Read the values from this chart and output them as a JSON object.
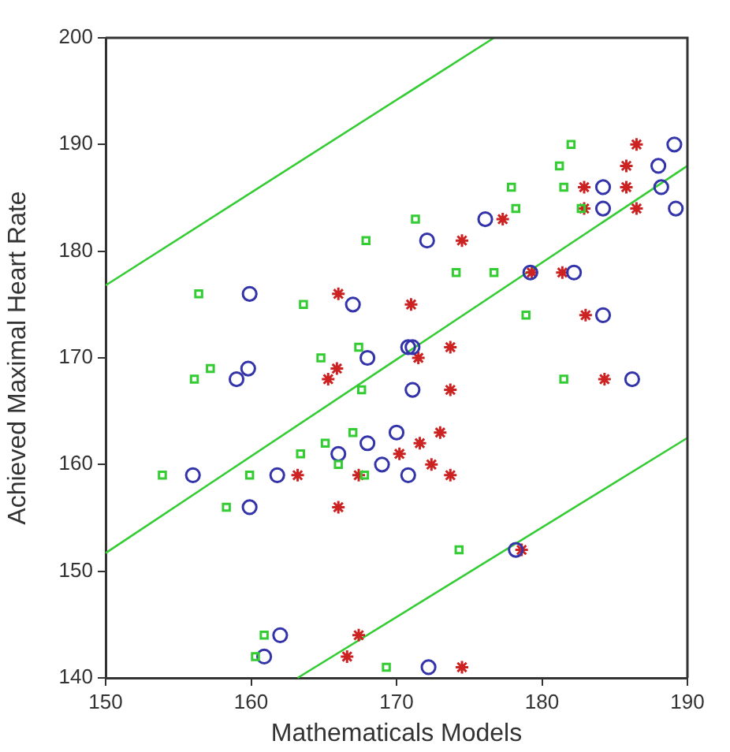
{
  "chart_data": {
    "type": "scatter",
    "xlabel": "Mathematicals Models",
    "ylabel": "Achieved Maximal Heart Rate",
    "xlim": [
      150,
      190
    ],
    "ylim": [
      140,
      200
    ],
    "xticks": [
      150,
      160,
      170,
      180,
      190
    ],
    "yticks": [
      140,
      150,
      160,
      170,
      180,
      190,
      200
    ],
    "grid": false,
    "legend": false,
    "series": [
      {
        "marker": "square",
        "color": "#33cc33",
        "x": [
          182,
          181.2,
          177.9,
          181.5,
          178.2,
          182.7,
          171.3,
          174.1,
          176.7,
          178.9,
          181.5,
          167.9,
          156.4,
          163.6,
          164.8,
          167.4,
          157.2,
          156.1,
          167.6,
          167,
          165.1,
          163.4,
          166,
          167.8,
          153.9,
          159.9,
          158.3,
          160.9,
          160.3,
          169.3,
          174.3
        ],
        "values": [
          190,
          188,
          186,
          186,
          184,
          184,
          183,
          178,
          178,
          174,
          168,
          181,
          176,
          175,
          170,
          171,
          169,
          168,
          167,
          163,
          162,
          161,
          160,
          159,
          159,
          159,
          156,
          144,
          142,
          141,
          152
        ]
      },
      {
        "marker": "circle",
        "color": "#3333aa",
        "x": [
          189.1,
          188,
          184.2,
          188.2,
          184.2,
          189.2,
          176.1,
          172.1,
          179.2,
          182.2,
          184.2,
          171.1,
          159.9,
          167,
          168,
          170.8,
          159.8,
          159,
          168,
          170,
          166,
          169,
          170.8,
          156,
          161.8,
          159.9,
          162,
          160.9,
          171.1,
          186.2,
          178.2,
          172.2
        ],
        "values": [
          190,
          188,
          186,
          186,
          184,
          184,
          183,
          181,
          178,
          178,
          174,
          171,
          176,
          175,
          170,
          171,
          169,
          168,
          162,
          163,
          161,
          160,
          159,
          159,
          159,
          156,
          144,
          142,
          167,
          168,
          152,
          141
        ]
      },
      {
        "marker": "cross",
        "color": "#cc2222",
        "x": [
          186.5,
          185.8,
          182.9,
          185.8,
          182.9,
          186.5,
          177.3,
          174.5,
          179.3,
          181.4,
          171,
          183,
          173.7,
          171.5,
          166,
          165.9,
          165.3,
          170.2,
          163.2,
          167.4,
          166,
          167.4,
          166.6,
          184.3,
          173.7,
          173,
          171.6,
          172.4,
          173.7,
          178.6,
          174.5
        ],
        "values": [
          190,
          188,
          186,
          186,
          184,
          184,
          183,
          181,
          178,
          178,
          175,
          174,
          171,
          170,
          176,
          169,
          168,
          161,
          159,
          159,
          156,
          144,
          142,
          168,
          167,
          163,
          162,
          160,
          159,
          152,
          141
        ]
      },
      {
        "type": "line",
        "marker": "none",
        "color": "#33cc33",
        "x": [
          150,
          190
        ],
        "values": [
          151.7,
          188
        ]
      },
      {
        "type": "line",
        "marker": "none",
        "color": "#33cc33",
        "x": [
          150,
          176.7
        ],
        "values": [
          176.8,
          200
        ]
      },
      {
        "type": "line",
        "marker": "none",
        "color": "#33cc33",
        "x": [
          163.2,
          190
        ],
        "values": [
          140,
          162.5
        ]
      }
    ]
  }
}
